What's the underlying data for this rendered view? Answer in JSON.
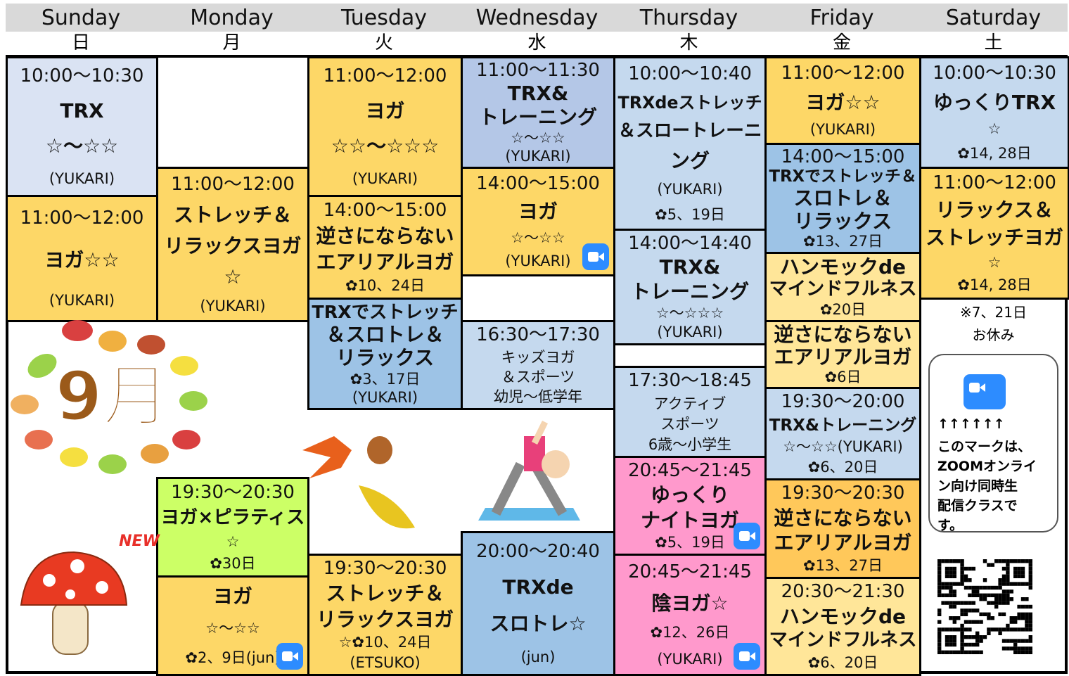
{
  "days": [
    {
      "name": "Sunday",
      "kanji": "日"
    },
    {
      "name": "Monday",
      "kanji": "月"
    },
    {
      "name": "Tuesday",
      "kanji": "火"
    },
    {
      "name": "Wednesday",
      "kanji": "水"
    },
    {
      "name": "Thursday",
      "kanji": "木"
    },
    {
      "name": "Friday",
      "kanji": "金"
    },
    {
      "name": "Saturday",
      "kanji": "土"
    }
  ],
  "columns": [
    {
      "cells": [
        {
          "lines": [
            "10:00〜10:30",
            "TRX",
            "☆〜☆☆",
            "(YUKARI)"
          ]
        },
        {
          "lines": [
            "11:00〜12:00",
            "ヨガ☆☆",
            "(YUKARI)"
          ]
        }
      ]
    },
    {
      "cells": [
        {
          "lines": [
            "11:00〜12:00",
            "ストレッチ＆",
            "リラックスヨガ",
            "☆",
            "(YUKARI)"
          ]
        },
        {
          "lines": [
            "19:30〜20:30",
            "ヨガ×ピラティス",
            "☆",
            "✿30日"
          ]
        },
        {
          "lines": [
            "ヨガ",
            "☆〜☆☆",
            "✿2、9日(jun)"
          ]
        }
      ]
    },
    {
      "cells": [
        {
          "lines": [
            "11:00〜12:00",
            "ヨガ",
            "☆☆〜☆☆☆",
            "(YUKARI)"
          ]
        },
        {
          "lines": [
            "14:00〜15:00",
            "逆さにならない",
            "エアリアルヨガ",
            "✿10、24日"
          ]
        },
        {
          "lines": [
            "TRXでストレッチ",
            "＆スロトレ＆",
            "リラックス",
            "✿3、17日",
            "(YUKARI)"
          ]
        },
        {
          "lines": [
            "19:30〜20:30",
            "ストレッチ＆",
            "リラックスヨガ",
            "☆✿10、24日",
            "(ETSUKO)"
          ]
        }
      ]
    },
    {
      "cells": [
        {
          "lines": [
            "11:00〜11:30",
            "TRX&",
            "トレーニング",
            "☆〜☆☆",
            "(YUKARI)"
          ]
        },
        {
          "lines": [
            "14:00〜15:00",
            "ヨガ",
            "☆〜☆☆",
            "(YUKARI)"
          ]
        },
        {
          "lines": [
            "16:30〜17:30",
            "キッズヨガ",
            "＆スポーツ",
            "幼児〜低学年"
          ]
        },
        {
          "lines": [
            "20:00〜20:40",
            "TRXde",
            "スロトレ☆",
            "(jun)"
          ]
        }
      ]
    },
    {
      "cells": [
        {
          "lines": [
            "10:00〜10:40",
            "TRXdeストレッチ",
            "＆スロートレーニ",
            "ング",
            "(YUKARI)",
            "✿5、19日"
          ]
        },
        {
          "lines": [
            "14:00〜14:40",
            "TRX&",
            "トレーニング",
            "☆〜☆☆☆",
            "(YUKARI)"
          ]
        },
        {
          "lines": [
            "17:30〜18:45",
            "アクティブ",
            "スポーツ",
            "6歳〜小学生"
          ]
        },
        {
          "lines": [
            "20:45〜21:45",
            "ゆっくり",
            "ナイトヨガ",
            "✿5、19日"
          ]
        },
        {
          "lines": [
            "20:45〜21:45",
            "陰ヨガ☆",
            "✿12、26日",
            "(YUKARI)"
          ]
        }
      ]
    },
    {
      "cells": [
        {
          "lines": [
            "11:00〜12:00",
            "ヨガ☆☆",
            "(YUKARI)"
          ]
        },
        {
          "lines": [
            "14:00〜15:00",
            "TRXでストレッチ＆",
            "スロトレ＆",
            "リラックス",
            "✿13、27日"
          ]
        },
        {
          "lines": [
            "ハンモックde",
            "マインドフルネス",
            "✿20日"
          ]
        },
        {
          "lines": [
            "逆さにならない",
            "エアリアルヨガ",
            "✿6日"
          ]
        },
        {
          "lines": [
            "19:30〜20:00",
            "TRX&トレーニング",
            "☆〜☆☆(YUKARI)",
            "✿6、20日"
          ]
        },
        {
          "lines": [
            "19:30〜20:30",
            "逆さにならない",
            "エアリアルヨガ",
            "✿13、27日"
          ]
        },
        {
          "lines": [
            "20:30〜21:30",
            "ハンモックde",
            "マインドフルネス",
            "✿6、20日"
          ]
        }
      ]
    },
    {
      "cells": [
        {
          "lines": [
            "10:00〜10:30",
            "ゆっくりTRX",
            "☆",
            "✿14, 28日"
          ]
        },
        {
          "lines": [
            "11:00〜12:00",
            "リラックス＆",
            "ストレッチヨガ",
            "☆",
            "✿14, 28日"
          ]
        }
      ]
    }
  ],
  "saturday_note": [
    "※7、21日",
    "お休み"
  ],
  "zoom_note": [
    "↑↑↑↑↑↑",
    "このマークは、",
    "ZOOMオンライ",
    "ン向け同時生",
    "配信クラスで",
    "す。"
  ],
  "decorations": {
    "month": "9月",
    "new_badge": "NEW"
  }
}
